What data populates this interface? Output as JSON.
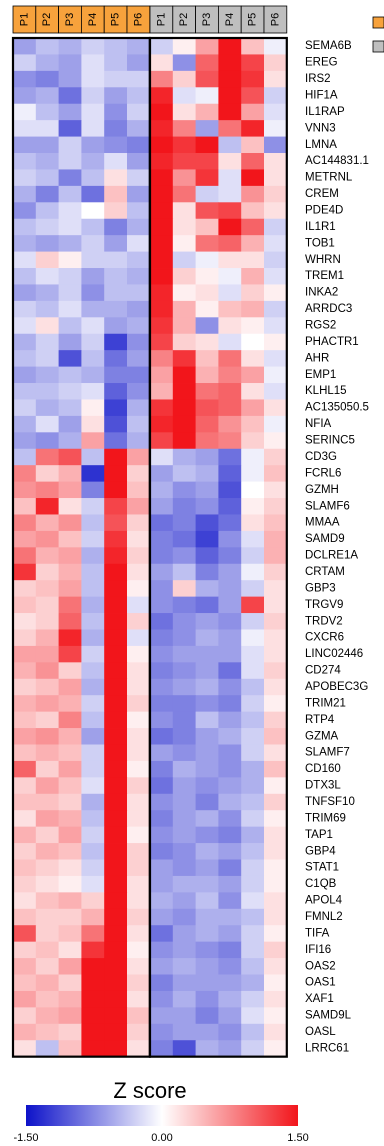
{
  "chart_data": {
    "type": "heatmap",
    "columns": [
      "P1",
      "P2",
      "P3",
      "P4",
      "P5",
      "P6",
      "P1",
      "P2",
      "P3",
      "P4",
      "P5",
      "P6"
    ],
    "column_groups": [
      {
        "color": "#f7a23c",
        "columns": [
          0,
          1,
          2,
          3,
          4,
          5
        ]
      },
      {
        "color": "#bfbfbf",
        "columns": [
          6,
          7,
          8,
          9,
          10,
          11
        ]
      }
    ],
    "rows": [
      "SEMA6B",
      "EREG",
      "IRS2",
      "HIF1A",
      "IL1RAP",
      "VNN3",
      "LMNA",
      "AC144831.1",
      "METRNL",
      "CREM",
      "PDE4D",
      "IL1R1",
      "TOB1",
      "WHRN",
      "TREM1",
      "INKA2",
      "ARRDC3",
      "RGS2",
      "PHACTR1",
      "AHR",
      "EMP1",
      "KLHL15",
      "AC135050.5",
      "NFIA",
      "SERINC5",
      "CD3G",
      "FCRL6",
      "GZMH",
      "SLAMF6",
      "MMAA",
      "SAMD9",
      "DCLRE1A",
      "CRTAM",
      "GBP3",
      "TRGV9",
      "TRDV2",
      "CXCR6",
      "LINC02446",
      "CD274",
      "APOBEC3G",
      "TRIM21",
      "RTP4",
      "GZMA",
      "SLAMF7",
      "CD160",
      "DTX3L",
      "TNFSF10",
      "TRIM69",
      "TAP1",
      "GBP4",
      "STAT1",
      "C1QB",
      "APOL4",
      "FMNL2",
      "TIFA",
      "IFI16",
      "OAS2",
      "OAS1",
      "XAF1",
      "SAMD9L",
      "OASL",
      "LRRC61"
    ],
    "values": [
      [
        -0.6,
        -0.4,
        -0.5,
        -0.3,
        -0.4,
        -0.5,
        -0.3,
        0.1,
        0.6,
        1.5,
        0.4,
        -0.1
      ],
      [
        -0.3,
        -0.5,
        -0.6,
        -0.2,
        -0.4,
        -0.6,
        0.2,
        -0.7,
        1.0,
        1.5,
        1.2,
        0.3
      ],
      [
        -0.7,
        -0.8,
        -0.6,
        -0.2,
        -0.3,
        -0.3,
        0.8,
        0.3,
        1.1,
        1.5,
        1.3,
        0.2
      ],
      [
        -0.6,
        -0.5,
        -0.9,
        -0.3,
        -0.6,
        -0.4,
        1.4,
        -0.2,
        -0.1,
        1.5,
        1.1,
        -0.3
      ],
      [
        -0.1,
        -0.4,
        -0.6,
        -0.2,
        -0.7,
        -0.3,
        1.5,
        0.2,
        0.5,
        1.5,
        0.6,
        -0.2
      ],
      [
        -0.2,
        -0.2,
        -1.0,
        -0.2,
        -0.8,
        -0.5,
        1.4,
        0.8,
        -0.6,
        0.9,
        1.4,
        -0.1
      ],
      [
        -0.6,
        -0.6,
        -0.3,
        -0.6,
        -0.7,
        -0.8,
        1.5,
        1.3,
        1.5,
        -0.4,
        0.4,
        -0.7
      ],
      [
        -0.4,
        -0.5,
        -0.3,
        -0.5,
        -0.2,
        -0.6,
        1.4,
        1.2,
        1.2,
        0.2,
        1.0,
        0.2
      ],
      [
        -0.3,
        -0.4,
        -0.8,
        -0.4,
        0.2,
        -0.3,
        1.5,
        0.7,
        1.3,
        -0.2,
        1.5,
        0.2
      ],
      [
        -0.5,
        -0.8,
        -0.4,
        -0.9,
        0.4,
        -0.6,
        1.5,
        0.9,
        -0.3,
        -0.2,
        0.7,
        0.3
      ],
      [
        -0.7,
        -0.4,
        -0.2,
        0.0,
        0.3,
        -0.4,
        1.5,
        0.2,
        1.1,
        1.2,
        0.4,
        0.2
      ],
      [
        -0.4,
        -0.3,
        -0.2,
        -0.4,
        -0.8,
        -0.5,
        1.5,
        0.2,
        0.4,
        1.5,
        1.0,
        -0.3
      ],
      [
        -0.5,
        -0.6,
        -0.5,
        -0.3,
        -0.6,
        -0.2,
        1.5,
        0.1,
        0.9,
        1.0,
        0.5,
        -0.2
      ],
      [
        -0.2,
        0.3,
        0.1,
        -0.3,
        -0.3,
        -0.4,
        1.5,
        -0.3,
        -0.1,
        0.2,
        0.2,
        -0.3
      ],
      [
        -0.4,
        -0.2,
        -0.3,
        -0.6,
        -0.4,
        -0.5,
        1.5,
        0.3,
        0.1,
        -0.1,
        0.5,
        -0.2
      ],
      [
        -0.6,
        -0.5,
        -0.3,
        -0.7,
        -0.4,
        -0.4,
        1.4,
        0.1,
        0.2,
        -0.2,
        0.3,
        0.1
      ],
      [
        -0.3,
        -0.4,
        -0.2,
        -0.5,
        -0.5,
        -0.6,
        1.4,
        0.5,
        0.1,
        0.4,
        0.5,
        -0.3
      ],
      [
        -0.2,
        0.2,
        -0.4,
        -0.2,
        -0.6,
        -0.5,
        1.3,
        0.5,
        -0.7,
        0.2,
        0.1,
        -0.2
      ],
      [
        -0.5,
        -0.3,
        -0.6,
        -0.3,
        -1.2,
        -0.7,
        1.2,
        0.3,
        0.2,
        -0.2,
        0.0,
        0.1
      ],
      [
        -0.4,
        -0.3,
        -1.1,
        -0.4,
        -0.9,
        -0.6,
        0.8,
        1.3,
        0.4,
        0.9,
        0.2,
        -0.2
      ],
      [
        -0.6,
        -0.5,
        -0.4,
        -0.5,
        -0.8,
        -0.8,
        0.6,
        1.5,
        0.5,
        0.8,
        0.6,
        -0.1
      ],
      [
        -0.4,
        -0.4,
        -0.3,
        -0.2,
        -1.0,
        -0.7,
        0.5,
        1.5,
        0.9,
        1.0,
        0.2,
        -0.2
      ],
      [
        -0.3,
        -0.5,
        -0.4,
        0.1,
        -1.2,
        -0.5,
        1.3,
        1.5,
        1.1,
        1.0,
        0.6,
        0.2
      ],
      [
        -0.5,
        -0.2,
        -0.6,
        0.2,
        -1.1,
        -0.4,
        1.4,
        1.5,
        1.0,
        0.7,
        0.4,
        -0.1
      ],
      [
        -0.6,
        -0.7,
        -0.5,
        0.6,
        -0.9,
        -0.5,
        1.2,
        1.5,
        0.9,
        0.8,
        0.3,
        0.1
      ],
      [
        -0.4,
        0.9,
        1.1,
        -0.4,
        1.5,
        0.6,
        -0.2,
        -0.5,
        -0.6,
        -0.9,
        -0.1,
        0.3
      ],
      [
        0.8,
        0.3,
        0.5,
        -1.3,
        1.5,
        0.3,
        -0.6,
        -0.4,
        -0.5,
        -1.0,
        -0.1,
        0.4
      ],
      [
        0.7,
        0.8,
        0.6,
        -0.8,
        1.5,
        0.4,
        -0.5,
        -0.7,
        -0.6,
        -1.1,
        0.0,
        0.2
      ],
      [
        0.4,
        1.4,
        0.2,
        -0.3,
        1.2,
        0.6,
        -0.6,
        -0.8,
        -0.7,
        -1.0,
        0.1,
        0.3
      ],
      [
        0.8,
        0.5,
        0.7,
        -0.4,
        1.1,
        0.3,
        -0.9,
        -0.8,
        -1.1,
        -0.9,
        0.2,
        0.4
      ],
      [
        0.6,
        0.7,
        0.4,
        -0.3,
        1.3,
        0.2,
        -0.8,
        -0.9,
        -1.2,
        -0.7,
        -0.2,
        0.5
      ],
      [
        0.9,
        0.5,
        0.6,
        -0.5,
        1.4,
        0.3,
        -0.8,
        -0.7,
        -1.0,
        -0.8,
        -0.3,
        0.5
      ],
      [
        1.3,
        0.3,
        0.5,
        -0.4,
        1.5,
        0.2,
        -0.6,
        -0.4,
        -0.8,
        -0.6,
        -0.1,
        0.3
      ],
      [
        0.3,
        0.4,
        0.6,
        -0.4,
        1.5,
        0.1,
        -0.7,
        0.3,
        -0.5,
        -0.6,
        -0.3,
        0.2
      ],
      [
        0.4,
        0.3,
        0.9,
        -0.5,
        1.5,
        -0.2,
        -0.7,
        -0.8,
        -0.9,
        -0.6,
        1.2,
        0.2
      ],
      [
        0.2,
        0.3,
        1.0,
        -0.4,
        1.5,
        0.3,
        -0.9,
        -0.7,
        -0.6,
        -0.7,
        -0.3,
        0.3
      ],
      [
        0.3,
        0.5,
        1.4,
        -0.5,
        1.5,
        -0.2,
        -0.8,
        -0.7,
        -0.5,
        -0.6,
        -0.1,
        0.2
      ],
      [
        0.6,
        0.6,
        1.2,
        -0.3,
        1.5,
        0.1,
        -0.7,
        -0.6,
        -0.6,
        -0.6,
        -0.2,
        0.2
      ],
      [
        0.5,
        0.7,
        0.3,
        -0.4,
        1.5,
        0.2,
        -0.8,
        -0.7,
        -0.6,
        -0.9,
        -0.2,
        0.3
      ],
      [
        0.3,
        0.4,
        0.6,
        -0.5,
        1.5,
        0.2,
        -0.7,
        -0.6,
        -0.5,
        -0.7,
        -0.4,
        0.2
      ],
      [
        0.5,
        0.6,
        0.5,
        -0.3,
        1.5,
        0.3,
        -0.8,
        -0.8,
        -0.7,
        -0.8,
        -0.3,
        0.1
      ],
      [
        0.4,
        0.3,
        0.8,
        -0.4,
        1.5,
        0.1,
        -0.7,
        -0.8,
        -0.4,
        -0.6,
        -0.4,
        0.3
      ],
      [
        0.6,
        0.7,
        0.5,
        -0.6,
        1.5,
        0.2,
        -0.9,
        -0.8,
        -0.6,
        -0.5,
        -0.3,
        0.4
      ],
      [
        0.4,
        0.5,
        0.4,
        -0.3,
        1.5,
        0.2,
        -0.6,
        -0.7,
        -0.6,
        -0.7,
        -0.3,
        0.2
      ],
      [
        1.0,
        0.3,
        0.6,
        -0.3,
        1.5,
        0.1,
        -0.8,
        -0.5,
        -0.6,
        -0.7,
        -0.5,
        0.4
      ],
      [
        0.3,
        0.6,
        0.4,
        -0.2,
        1.5,
        0.3,
        -0.9,
        -0.6,
        -0.7,
        -0.6,
        -0.5,
        0.1
      ],
      [
        0.4,
        0.4,
        0.3,
        -0.5,
        1.5,
        0.2,
        -0.7,
        -0.6,
        -0.8,
        -0.5,
        -0.4,
        0.3
      ],
      [
        0.2,
        0.6,
        0.5,
        -0.4,
        1.5,
        0.2,
        -0.8,
        -0.6,
        -0.5,
        -0.7,
        -0.3,
        0.1
      ],
      [
        0.5,
        0.3,
        0.6,
        -0.3,
        1.5,
        0.1,
        -0.7,
        -0.6,
        -0.7,
        -0.8,
        -0.5,
        0.2
      ],
      [
        0.3,
        0.5,
        0.4,
        -0.4,
        1.5,
        0.3,
        -0.8,
        -0.7,
        -0.5,
        -0.6,
        -0.4,
        0.2
      ],
      [
        0.4,
        0.3,
        0.2,
        -0.3,
        1.5,
        0.3,
        -0.6,
        -0.7,
        -0.6,
        -0.8,
        -0.3,
        0.1
      ],
      [
        0.3,
        0.2,
        0.1,
        -0.2,
        1.5,
        0.2,
        -0.6,
        -0.5,
        -0.5,
        -0.6,
        -0.3,
        0.1
      ],
      [
        0.2,
        0.4,
        0.5,
        0.3,
        1.5,
        0.2,
        -0.5,
        -0.6,
        -0.4,
        -0.7,
        -0.2,
        0.2
      ],
      [
        0.4,
        0.3,
        0.3,
        0.5,
        1.5,
        0.3,
        -0.6,
        -0.7,
        -0.5,
        -0.5,
        -0.4,
        0.2
      ],
      [
        1.1,
        0.3,
        0.4,
        0.9,
        1.5,
        0.2,
        -0.9,
        -0.6,
        -0.5,
        -0.6,
        -0.3,
        0.1
      ],
      [
        0.3,
        0.4,
        0.2,
        1.3,
        1.5,
        0.1,
        -0.7,
        -0.6,
        -0.7,
        -0.8,
        -0.3,
        0.3
      ],
      [
        0.5,
        0.3,
        0.6,
        1.5,
        1.5,
        0.2,
        -0.6,
        -0.5,
        -0.6,
        -0.7,
        -0.4,
        0.2
      ],
      [
        0.4,
        0.5,
        0.3,
        1.5,
        1.5,
        0.3,
        -0.8,
        -0.6,
        -0.6,
        -0.6,
        -0.5,
        0.1
      ],
      [
        0.6,
        0.4,
        0.5,
        1.5,
        1.5,
        0.2,
        -0.7,
        -0.5,
        -0.7,
        -0.5,
        -0.3,
        0.2
      ],
      [
        0.3,
        0.5,
        0.6,
        1.5,
        1.5,
        0.4,
        -0.6,
        -0.6,
        -0.8,
        -0.6,
        -0.2,
        0.1
      ],
      [
        0.5,
        0.4,
        0.3,
        1.5,
        1.5,
        0.3,
        -0.7,
        -0.6,
        -0.6,
        -0.7,
        -0.4,
        0.2
      ],
      [
        0.2,
        -0.4,
        0.4,
        1.5,
        1.5,
        0.2,
        -0.8,
        -1.1,
        -0.5,
        -0.6,
        -0.3,
        0.1
      ]
    ],
    "color_scale": {
      "min": -1.5,
      "mid": 0.0,
      "max": 1.5,
      "min_color": "#0d12c9",
      "mid_color": "#ffffff",
      "max_color": "#f2151b"
    },
    "colorbar_title": "Z score",
    "colorbar_ticks": [
      "-1.50",
      "0.00",
      "1.50"
    ]
  }
}
